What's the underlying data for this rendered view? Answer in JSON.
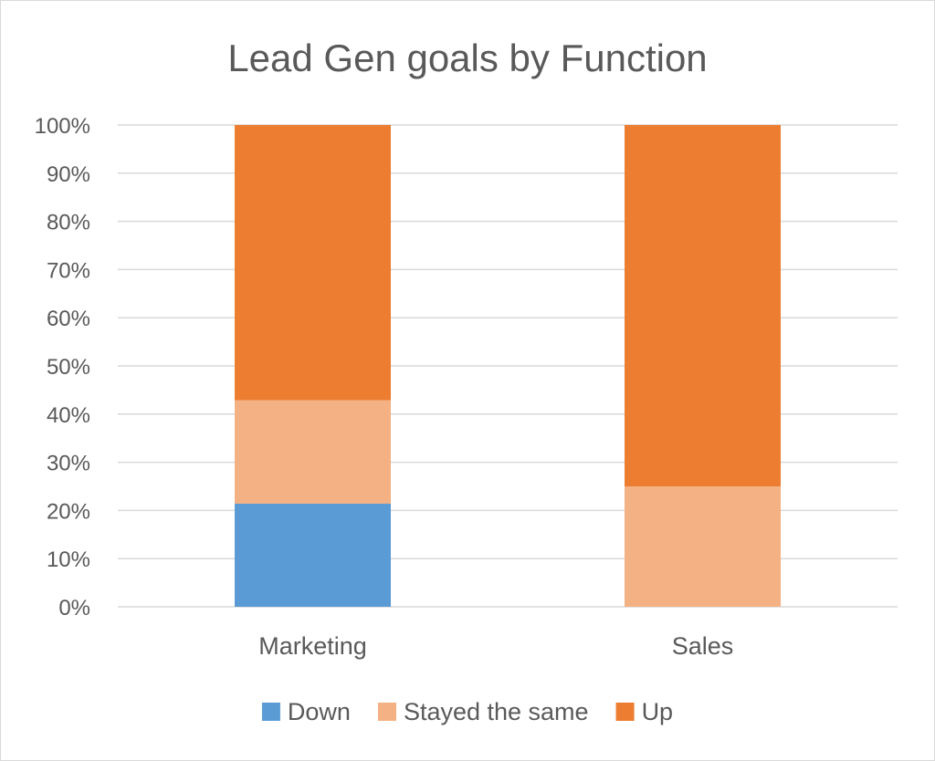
{
  "chart_data": {
    "type": "bar",
    "stacked": "percent",
    "title": "Lead Gen goals by Function",
    "xlabel": "",
    "ylabel": "",
    "categories": [
      "Marketing",
      "Sales"
    ],
    "series": [
      {
        "name": "Down",
        "color": "#5b9bd5",
        "values": [
          21.4,
          0
        ]
      },
      {
        "name": "Stayed the same",
        "color": "#f4b183",
        "values": [
          21.5,
          25
        ]
      },
      {
        "name": "Up",
        "color": "#ed7d31",
        "values": [
          57.1,
          75
        ]
      }
    ],
    "ylim": [
      0,
      100
    ],
    "yticks": [
      "0%",
      "10%",
      "20%",
      "30%",
      "40%",
      "50%",
      "60%",
      "70%",
      "80%",
      "90%",
      "100%"
    ],
    "grid": true,
    "legend_position": "bottom",
    "colors": {
      "gridline": "#d9d9d9",
      "text": "#595959"
    }
  }
}
